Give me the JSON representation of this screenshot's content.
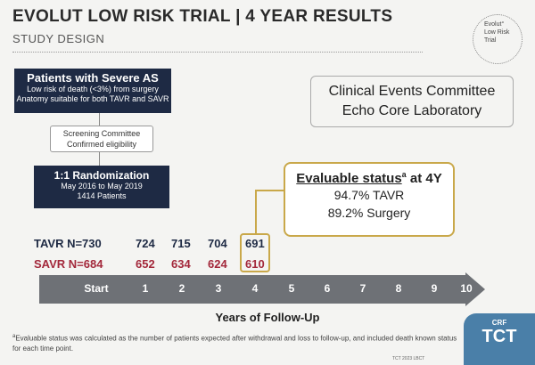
{
  "header": {
    "title": "EVOLUT LOW RISK TRIAL | 4 YEAR RESULTS",
    "subtitle": "STUDY DESIGN"
  },
  "logo": {
    "line1": "Evolut°",
    "line2": "Low Risk",
    "line3": "Trial"
  },
  "as_box": {
    "title": "Patients with Severe AS",
    "line1": "Low risk of death (<3%) from surgery",
    "line2": "Anatomy suitable for both TAVR and SAVR"
  },
  "screening": {
    "title": "Screening Committee",
    "sub": "Confirmed eligibility"
  },
  "randomization": {
    "title": "1:1 Randomization",
    "line1": "May 2016 to May 2019",
    "line2": "1414 Patients"
  },
  "committee": {
    "line1": "Clinical Events Committee",
    "line2": "Echo Core Laboratory"
  },
  "evaluable": {
    "title": "Evaluable status",
    "sup": "a",
    "title_suffix": " at 4Y",
    "tavr": "94.7% TAVR",
    "surgery": "89.2% Surgery"
  },
  "rows": {
    "tavr": {
      "label": "TAVR N=730",
      "values": [
        "724",
        "715",
        "704",
        "691"
      ]
    },
    "savr": {
      "label": "SAVR N=684",
      "values": [
        "652",
        "634",
        "624",
        "610"
      ]
    }
  },
  "timeline": {
    "ticks": [
      "Start",
      "1",
      "2",
      "3",
      "4",
      "5",
      "6",
      "7",
      "8",
      "9",
      "10"
    ],
    "axis_label": "Years of Follow-Up"
  },
  "footnote": {
    "sup": "a",
    "text": "Evaluable status was calculated as the number of patients expected after withdrawal and loss to follow-up, and included death known status for each time point."
  },
  "brand": {
    "crf": "CRF",
    "tct": "TCT",
    "credit": "TCT 2023 LBCT"
  },
  "colors": {
    "navy": "#1e2a44",
    "savr_red": "#a3283b",
    "gold": "#c9a84a",
    "arrow_gray": "#6e7176"
  }
}
